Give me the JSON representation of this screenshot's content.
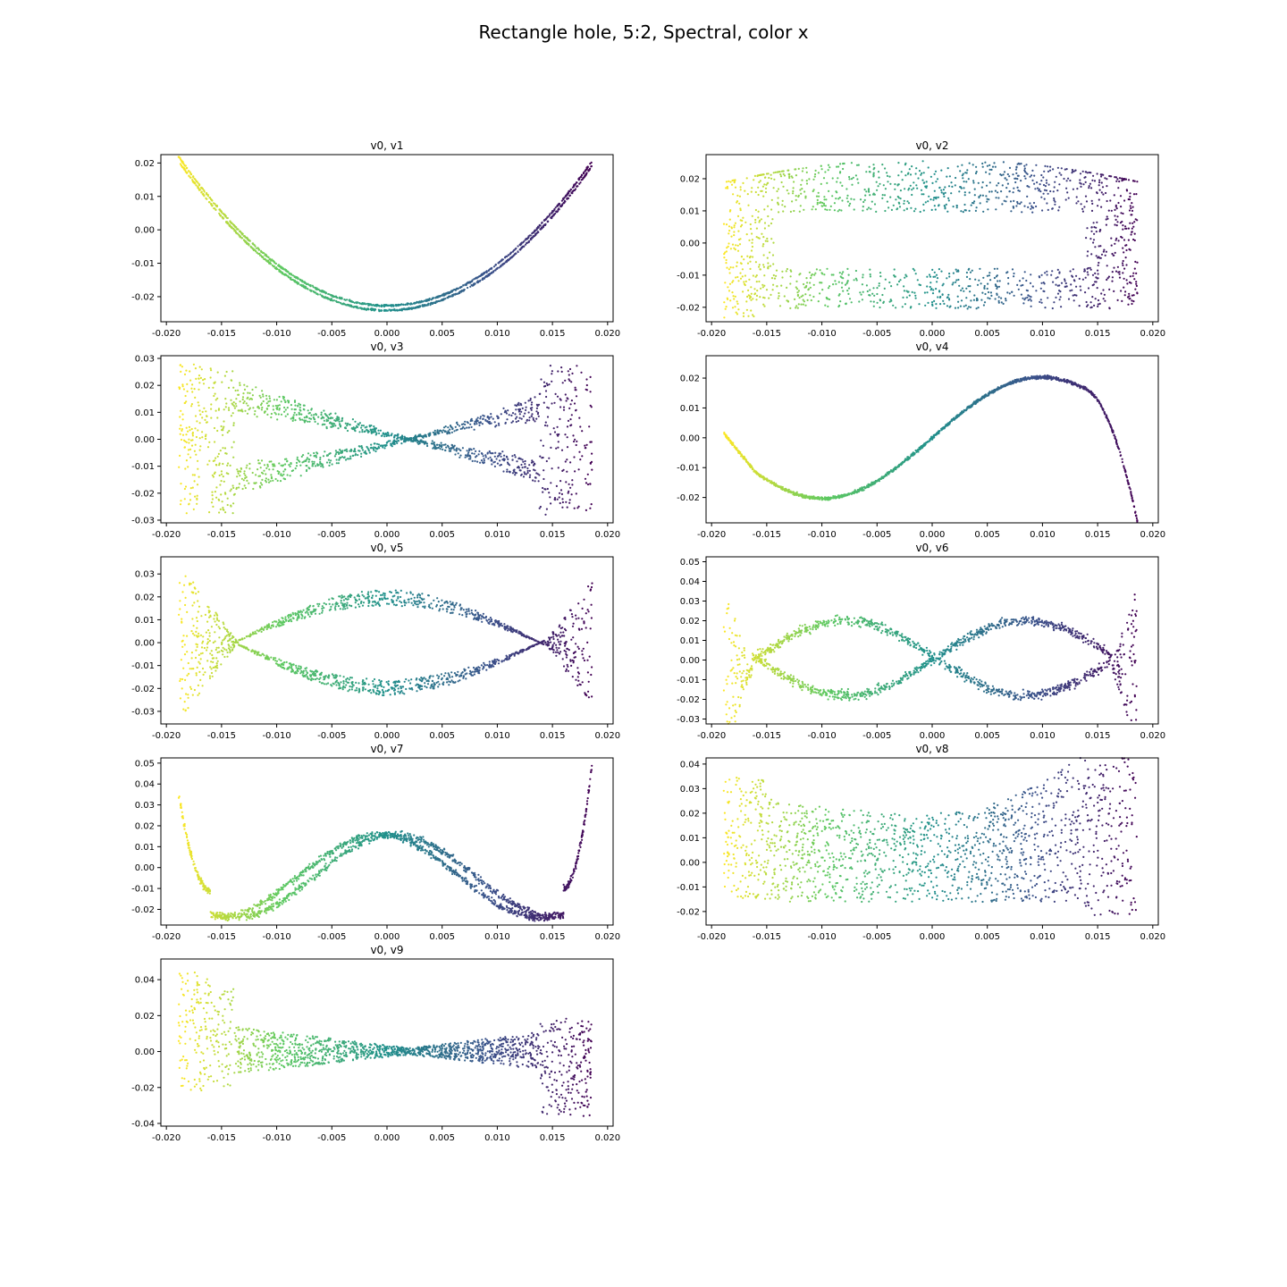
{
  "figure": {
    "title": "Rectangle hole, 5:2, Spectral, color x"
  },
  "chart_data": [
    {
      "type": "scatter",
      "title": "v0, v1",
      "shape": "parabola",
      "x_range": [
        -0.0189,
        0.0186
      ],
      "xlim": [
        -0.0205,
        0.0205
      ],
      "ylim": [
        -0.0275,
        0.0225
      ],
      "xticks": [
        "-0.020",
        "-0.015",
        "-0.010",
        "-0.005",
        "0.000",
        "0.005",
        "0.010",
        "0.015",
        "0.020"
      ],
      "yticks": [
        "-0.02",
        "-0.01",
        "0.00",
        "0.01",
        "0.02"
      ]
    },
    {
      "type": "scatter",
      "title": "v0, v2",
      "shape": "rect-hole",
      "x_range": [
        -0.0189,
        0.0186
      ],
      "xlim": [
        -0.0205,
        0.0205
      ],
      "ylim": [
        -0.0245,
        0.0275
      ],
      "xticks": [
        "-0.020",
        "-0.015",
        "-0.010",
        "-0.005",
        "0.000",
        "0.005",
        "0.010",
        "0.015",
        "0.020"
      ],
      "yticks": [
        "-0.02",
        "-0.01",
        "0.00",
        "0.01",
        "0.02"
      ]
    },
    {
      "type": "scatter",
      "title": "v0, v3",
      "shape": "bowtie",
      "x_range": [
        -0.0189,
        0.0186
      ],
      "xlim": [
        -0.0205,
        0.0205
      ],
      "ylim": [
        -0.031,
        0.031
      ],
      "xticks": [
        "-0.020",
        "-0.015",
        "-0.010",
        "-0.005",
        "0.000",
        "0.005",
        "0.010",
        "0.015",
        "0.020"
      ],
      "yticks": [
        "-0.03",
        "-0.02",
        "-0.01",
        "0.00",
        "0.01",
        "0.02",
        "0.03"
      ]
    },
    {
      "type": "scatter",
      "title": "v0, v4",
      "shape": "cubic",
      "x_range": [
        -0.0189,
        0.0186
      ],
      "xlim": [
        -0.0205,
        0.0205
      ],
      "ylim": [
        -0.0285,
        0.0275
      ],
      "xticks": [
        "-0.020",
        "-0.015",
        "-0.010",
        "-0.005",
        "0.000",
        "0.005",
        "0.010",
        "0.015",
        "0.020"
      ],
      "yticks": [
        "-0.02",
        "-0.01",
        "0.00",
        "0.01",
        "0.02"
      ]
    },
    {
      "type": "scatter",
      "title": "v0, v5",
      "shape": "lens",
      "x_range": [
        -0.0189,
        0.0186
      ],
      "xlim": [
        -0.0205,
        0.0205
      ],
      "ylim": [
        -0.0355,
        0.0375
      ],
      "xticks": [
        "-0.020",
        "-0.015",
        "-0.010",
        "-0.005",
        "0.000",
        "0.005",
        "0.010",
        "0.015",
        "0.020"
      ],
      "yticks": [
        "-0.03",
        "-0.02",
        "-0.01",
        "0.00",
        "0.01",
        "0.02",
        "0.03"
      ]
    },
    {
      "type": "scatter",
      "title": "v0, v6",
      "shape": "wave6",
      "x_range": [
        -0.0189,
        0.0186
      ],
      "xlim": [
        -0.0205,
        0.0205
      ],
      "ylim": [
        -0.0325,
        0.0525
      ],
      "xticks": [
        "-0.020",
        "-0.015",
        "-0.010",
        "-0.005",
        "0.000",
        "0.005",
        "0.010",
        "0.015",
        "0.020"
      ],
      "yticks": [
        "-0.03",
        "-0.02",
        "-0.01",
        "0.00",
        "0.01",
        "0.02",
        "0.03",
        "0.04",
        "0.05"
      ]
    },
    {
      "type": "scatter",
      "title": "v0, v7",
      "shape": "wave7",
      "x_range": [
        -0.0189,
        0.0186
      ],
      "xlim": [
        -0.0205,
        0.0205
      ],
      "ylim": [
        -0.0275,
        0.0525
      ],
      "xticks": [
        "-0.020",
        "-0.015",
        "-0.010",
        "-0.005",
        "0.000",
        "0.005",
        "0.010",
        "0.015",
        "0.020"
      ],
      "yticks": [
        "-0.02",
        "-0.01",
        "0.00",
        "0.01",
        "0.02",
        "0.03",
        "0.04",
        "0.05"
      ]
    },
    {
      "type": "scatter",
      "title": "v0, v8",
      "shape": "band8",
      "x_range": [
        -0.0189,
        0.0186
      ],
      "xlim": [
        -0.0205,
        0.0205
      ],
      "ylim": [
        -0.0255,
        0.0425
      ],
      "xticks": [
        "-0.020",
        "-0.015",
        "-0.010",
        "-0.005",
        "0.000",
        "0.005",
        "0.010",
        "0.015",
        "0.020"
      ],
      "yticks": [
        "-0.02",
        "-0.01",
        "0.00",
        "0.01",
        "0.02",
        "0.03",
        "0.04"
      ]
    },
    {
      "type": "scatter",
      "title": "v0, v9",
      "shape": "band9",
      "x_range": [
        -0.0189,
        0.0186
      ],
      "xlim": [
        -0.0205,
        0.0205
      ],
      "ylim": [
        -0.0415,
        0.0515
      ],
      "xticks": [
        "-0.020",
        "-0.015",
        "-0.010",
        "-0.005",
        "0.000",
        "0.005",
        "0.010",
        "0.015",
        "0.020"
      ],
      "yticks": [
        "-0.04",
        "-0.02",
        "0.00",
        "0.02",
        "0.04"
      ]
    }
  ],
  "colors": {
    "colormap": [
      "#fde725",
      "#5ec962",
      "#21918c",
      "#3b528b",
      "#440154"
    ],
    "axis": "#000000"
  }
}
